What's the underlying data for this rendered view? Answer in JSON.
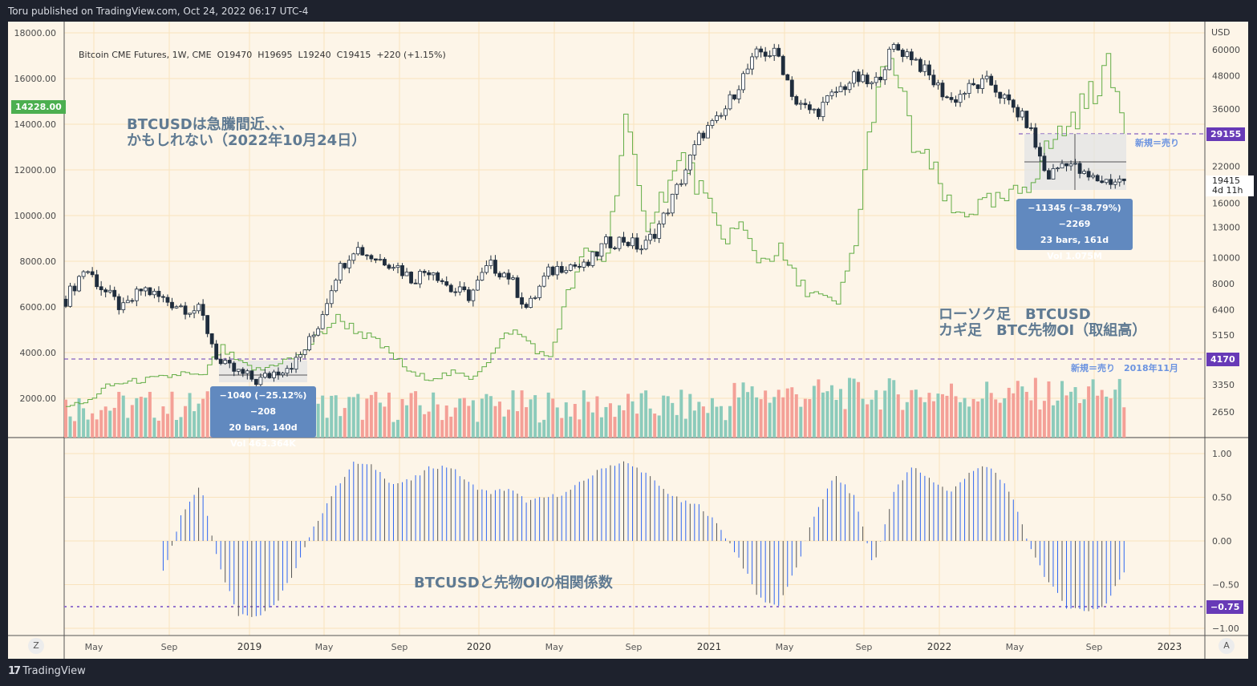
{
  "header": {
    "published": "Toru published on TradingView.com, Oct 24, 2022 06:17 UTC-4"
  },
  "legend": {
    "symbol": "Bitcoin CME Futures, 1W, CME",
    "open": "O19470",
    "high": "H19695",
    "low": "L19240",
    "close": "C19415",
    "change": "+220 (+1.15%)"
  },
  "notes": {
    "line1": "BTCUSDは急騰間近、、、",
    "line2": "かもしれない（2022年10月24日）",
    "legend1": "ローソク足　BTCUSD",
    "legend2": "カギ足　BTC先物OI（取組高）",
    "corr_title": "BTCUSDと先物OIの相関係数",
    "sell_new": "新規＝売り",
    "sell_2018": "新規＝売り　2018年11月"
  },
  "badges": {
    "oi_current": "14228.00",
    "price_level": "29155",
    "price_current": "19415",
    "countdown": "4d 11h",
    "support": "4170",
    "corr_level": "−0.75",
    "currency": "USD"
  },
  "measures": [
    {
      "line1": "−1040 (−25.12%) −208",
      "line2": "20 bars, 140d",
      "line3": "Vol 463.364K"
    },
    {
      "line1": "−11345 (−38.79%) −2269",
      "line2": "23 bars, 161d",
      "line3": "Vol 1.075M"
    }
  ],
  "footer": {
    "brand": "TradingView",
    "z": "Z",
    "a": "A"
  },
  "colors": {
    "bg": "#fdf5e8",
    "grid": "#f9e3bd",
    "candle": "#1f2d3d",
    "vol_up": "#8ccbbb",
    "vol_down": "#f4a097",
    "oi": "#62ad45",
    "corr": "#2f66f0",
    "accent": "#673ab7"
  },
  "chart_data": [
    {
      "type": "candlestick+line",
      "title": "Bitcoin CME Futures, 1W",
      "x_start": "2018-03",
      "x_end": "2022-10",
      "x_resolution": "monthly close (approx)",
      "price_axis": {
        "scale": "log",
        "ticks": [
          60000,
          48000,
          36000,
          22000,
          16000,
          13000,
          10000,
          8000,
          6400,
          5150,
          4170,
          3350,
          2650
        ],
        "tick_labels": [
          "60000",
          "48000",
          "36000",
          "22000",
          "16000",
          "13000",
          "10000",
          "8000",
          "6400",
          "5150",
          "4170",
          "3350",
          "2650"
        ]
      },
      "oi_axis": {
        "ticks": [
          18000,
          16000,
          14000,
          12000,
          10000,
          8000,
          6000,
          4000,
          2000
        ],
        "tick_labels": [
          "18000.00",
          "16000.00",
          "14000.00",
          "12000.00",
          "10000.00",
          "8000.00",
          "6000.00",
          "4000.00",
          "2000.00"
        ]
      },
      "time_ticks": [
        "May",
        "Sep",
        "2019",
        "May",
        "Sep",
        "2020",
        "May",
        "Sep",
        "2021",
        "May",
        "Sep",
        "2022",
        "May",
        "Sep",
        "2023"
      ],
      "price_close": [
        7000,
        9200,
        7500,
        6400,
        7700,
        7000,
        6600,
        6300,
        4000,
        3700,
        3450,
        3800,
        4100,
        5300,
        8600,
        11000,
        10000,
        9600,
        8300,
        9200,
        7600,
        7200,
        9400,
        8600,
        6400,
        8700,
        9500,
        9150,
        11300,
        11700,
        10800,
        13800,
        19700,
        29000,
        33000,
        45000,
        58800,
        57700,
        37300,
        35000,
        41500,
        47100,
        43800,
        61300,
        57000,
        46300,
        38500,
        43200,
        45500,
        37700,
        31800,
        19900,
        23300,
        20000,
        19400,
        19415
      ],
      "oi_series": {
        "name": "BTC先物OI",
        "values": [
          1700,
          1800,
          2500,
          2700,
          2800,
          2900,
          3100,
          2900,
          4200,
          3500,
          3200,
          3600,
          3800,
          4700,
          5500,
          5000,
          4500,
          3800,
          3000,
          2900,
          3100,
          2900,
          3800,
          5000,
          4500,
          3600,
          6500,
          8500,
          8000,
          14300,
          9500,
          11000,
          12500,
          11000,
          9000,
          9500,
          8000,
          8500,
          7000,
          6500,
          6000,
          9000,
          15500,
          16600,
          13000,
          12000,
          10000,
          10300,
          10500,
          10700,
          11500,
          13000,
          14000,
          15000,
          16500,
          14228
        ]
      },
      "levels": [
        29155,
        4170
      ]
    },
    {
      "type": "bar",
      "title": "BTCUSDと先物OIの相関係数",
      "ylim": [
        -1,
        1
      ],
      "ticks": [
        "1.00",
        "0.50",
        "0.00",
        "−0.50",
        "−1.00"
      ],
      "values": [
        null,
        null,
        null,
        null,
        null,
        -0.4,
        0.3,
        0.65,
        -0.3,
        -0.85,
        -0.85,
        -0.7,
        -0.3,
        0.2,
        0.6,
        0.9,
        0.85,
        0.65,
        0.7,
        0.85,
        0.85,
        0.65,
        0.55,
        0.6,
        0.45,
        0.5,
        0.55,
        0.7,
        0.85,
        0.9,
        0.8,
        0.6,
        0.45,
        0.4,
        0.15,
        -0.2,
        -0.65,
        -0.75,
        -0.3,
        0.35,
        0.75,
        0.5,
        -0.3,
        0.55,
        0.85,
        0.7,
        0.55,
        0.8,
        0.85,
        0.6,
        0.0,
        -0.45,
        -0.75,
        -0.8,
        -0.75,
        -0.35
      ],
      "level": -0.75
    }
  ]
}
